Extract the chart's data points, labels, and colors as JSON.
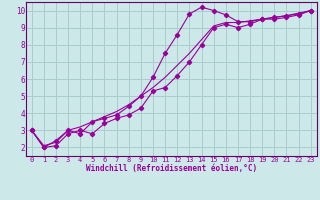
{
  "xlabel": "Windchill (Refroidissement éolien,°C)",
  "bg_color": "#cce8e8",
  "grid_color": "#aacccc",
  "line_color": "#990099",
  "spine_color": "#660066",
  "xlim": [
    -0.5,
    23.5
  ],
  "ylim": [
    1.5,
    10.5
  ],
  "xticks": [
    0,
    1,
    2,
    3,
    4,
    5,
    6,
    7,
    8,
    9,
    10,
    11,
    12,
    13,
    14,
    15,
    16,
    17,
    18,
    19,
    20,
    21,
    22,
    23
  ],
  "yticks": [
    2,
    3,
    4,
    5,
    6,
    7,
    8,
    9,
    10
  ],
  "line1_x": [
    0,
    1,
    2,
    3,
    4,
    5,
    6,
    7,
    8,
    9,
    10,
    11,
    12,
    13,
    14,
    15,
    16,
    17,
    18,
    19,
    20,
    21,
    22,
    23
  ],
  "line1_y": [
    3.0,
    2.0,
    2.4,
    3.0,
    2.8,
    3.5,
    3.7,
    3.9,
    4.4,
    5.0,
    6.1,
    7.5,
    8.6,
    9.8,
    10.2,
    10.0,
    9.75,
    9.35,
    9.35,
    9.5,
    9.5,
    9.6,
    9.75,
    10.0
  ],
  "line2_x": [
    0,
    1,
    2,
    3,
    4,
    5,
    6,
    7,
    8,
    9,
    10,
    11,
    12,
    13,
    14,
    15,
    16,
    17,
    18,
    19,
    20,
    21,
    22,
    23
  ],
  "line2_y": [
    3.0,
    2.0,
    2.1,
    2.8,
    3.0,
    2.8,
    3.4,
    3.7,
    3.9,
    4.3,
    5.3,
    5.5,
    6.2,
    7.0,
    8.0,
    9.0,
    9.2,
    9.0,
    9.2,
    9.5,
    9.6,
    9.7,
    9.8,
    10.0
  ],
  "line3_x": [
    0,
    1,
    2,
    3,
    4,
    5,
    6,
    7,
    8,
    9,
    10,
    11,
    12,
    13,
    14,
    15,
    16,
    17,
    18,
    19,
    20,
    21,
    22,
    23
  ],
  "line3_y": [
    3.0,
    2.1,
    2.3,
    3.0,
    3.2,
    3.5,
    3.8,
    4.1,
    4.5,
    5.0,
    5.5,
    6.1,
    6.8,
    7.5,
    8.3,
    9.1,
    9.3,
    9.3,
    9.4,
    9.5,
    9.6,
    9.7,
    9.85,
    10.0
  ],
  "tick_fontsize": 5.0,
  "xlabel_fontsize": 5.5
}
